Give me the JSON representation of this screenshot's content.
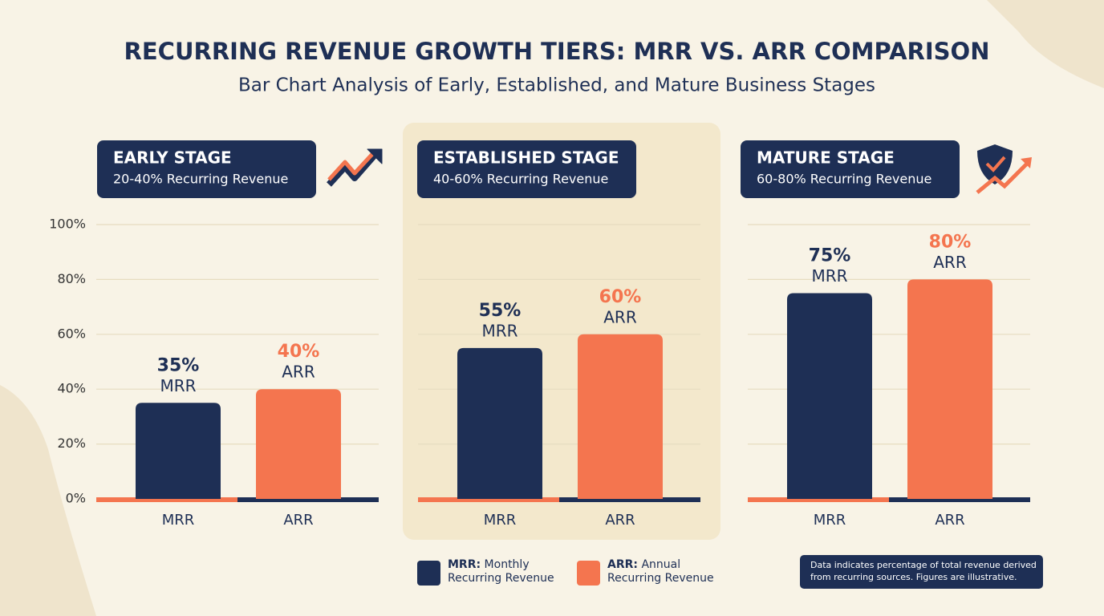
{
  "header": {
    "title": "RECURRING REVENUE GROWTH TIERS: MRR VS. ARR COMPARISON",
    "subtitle": "Bar Chart Analysis of Early, Established, and Mature Business Stages"
  },
  "chart_data": [
    {
      "type": "bar",
      "title": "EARLY STAGE",
      "subtitle": "20-40% Recurring Revenue",
      "categories": [
        "MRR",
        "ARR"
      ],
      "values": [
        35,
        40
      ],
      "value_labels": [
        "35%",
        "40%"
      ],
      "colors": [
        "#1e2f55",
        "#f4754f"
      ],
      "ylim": [
        0,
        100
      ],
      "yticks": [
        {
          "value": 0,
          "label": "0%"
        },
        {
          "value": 20,
          "label": "20%"
        },
        {
          "value": 40,
          "label": "40%"
        },
        {
          "value": 60,
          "label": "60%"
        },
        {
          "value": 80,
          "label": "80%"
        },
        {
          "value": 100,
          "label": "100%"
        }
      ],
      "grid": true
    },
    {
      "type": "bar",
      "title": "ESTABLISHED STAGE",
      "subtitle": "40-60% Recurring Revenue",
      "categories": [
        "MRR",
        "ARR"
      ],
      "values": [
        55,
        60
      ],
      "value_labels": [
        "55%",
        "60%"
      ],
      "colors": [
        "#1e2f55",
        "#f4754f"
      ],
      "highlight": true
    },
    {
      "type": "bar",
      "title": "MATURE STAGE",
      "subtitle": "60-80% Recurring Revenue",
      "categories": [
        "MRR",
        "ARR"
      ],
      "values": [
        75,
        80
      ],
      "value_labels": [
        "75%",
        "80%"
      ],
      "colors": [
        "#1e2f55",
        "#f4754f"
      ]
    }
  ],
  "legend": [
    {
      "term": "MRR:",
      "text": "Monthly Recurring Revenue"
    },
    {
      "term": "ARR:",
      "text": "Annual Recurring Revenue"
    }
  ],
  "note": "Data indicates percentage of total revenue derived from recurring sources. Figures are illustrative."
}
